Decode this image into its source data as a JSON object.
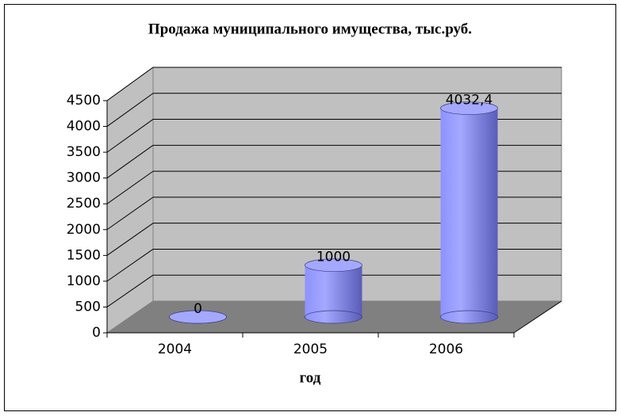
{
  "chart_data": {
    "type": "bar3d",
    "title": "Продажа муниципального имущества, тыс.руб.",
    "x_label": "год",
    "categories": [
      "2004",
      "2005",
      "2006"
    ],
    "values": [
      0,
      1000,
      4032.4
    ],
    "value_labels": [
      "0",
      "1000",
      "4032,4"
    ],
    "color": "#7c82f0",
    "ylim": [
      0,
      4500
    ],
    "yticks": [
      0,
      500,
      1000,
      1500,
      2000,
      2500,
      3000,
      3500,
      4000,
      4500
    ],
    "grid": true
  }
}
